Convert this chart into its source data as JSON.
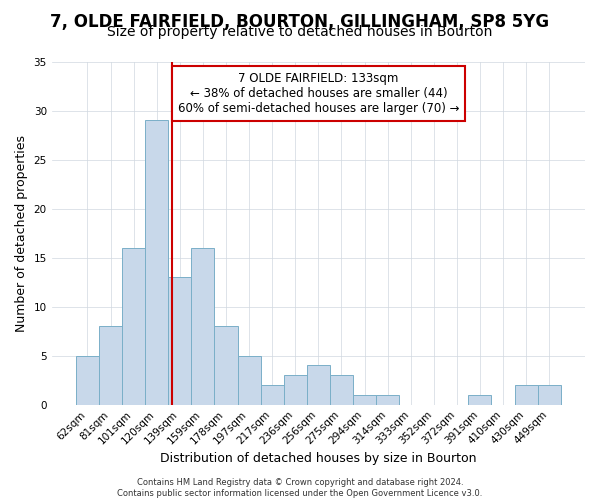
{
  "title": "7, OLDE FAIRFIELD, BOURTON, GILLINGHAM, SP8 5YG",
  "subtitle": "Size of property relative to detached houses in Bourton",
  "xlabel": "Distribution of detached houses by size in Bourton",
  "ylabel": "Number of detached properties",
  "bar_labels": [
    "62sqm",
    "81sqm",
    "101sqm",
    "120sqm",
    "139sqm",
    "159sqm",
    "178sqm",
    "197sqm",
    "217sqm",
    "236sqm",
    "256sqm",
    "275sqm",
    "294sqm",
    "314sqm",
    "333sqm",
    "352sqm",
    "372sqm",
    "391sqm",
    "410sqm",
    "430sqm",
    "449sqm"
  ],
  "bar_values": [
    5,
    8,
    16,
    29,
    13,
    16,
    8,
    5,
    2,
    3,
    4,
    3,
    1,
    1,
    0,
    0,
    0,
    1,
    0,
    2,
    2
  ],
  "bar_color": "#c8d8ea",
  "bar_edge_color": "#7aafc8",
  "vline_color": "#cc0000",
  "vline_position": 3.68,
  "annotation_text": "7 OLDE FAIRFIELD: 133sqm\n← 38% of detached houses are smaller (44)\n60% of semi-detached houses are larger (70) →",
  "annotation_box_facecolor": "#ffffff",
  "annotation_box_edgecolor": "#cc0000",
  "footer_text": "Contains HM Land Registry data © Crown copyright and database right 2024.\nContains public sector information licensed under the Open Government Licence v3.0.",
  "ylim": [
    0,
    35
  ],
  "yticks": [
    0,
    5,
    10,
    15,
    20,
    25,
    30,
    35
  ],
  "grid_color": "#d0d8e0",
  "bg_color": "#ffffff",
  "title_fontsize": 12,
  "subtitle_fontsize": 10,
  "ylabel_fontsize": 9,
  "xlabel_fontsize": 9,
  "tick_fontsize": 7.5,
  "annotation_fontsize": 8.5,
  "footer_fontsize": 6
}
